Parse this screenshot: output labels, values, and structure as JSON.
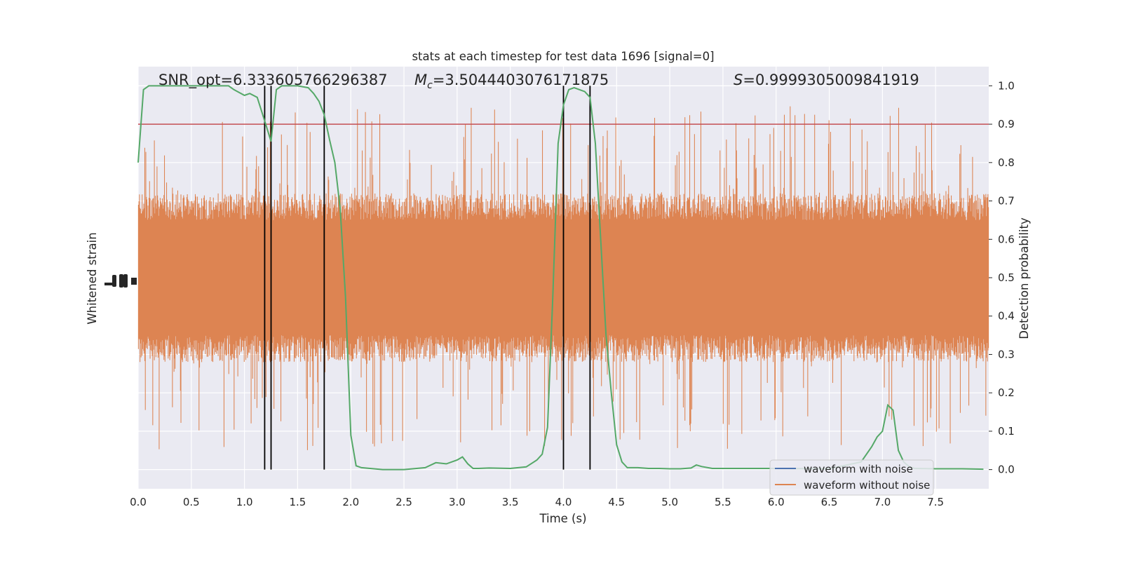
{
  "chart_data": {
    "type": "line",
    "title": "stats at each timestep for test data 1696 [signal=0]",
    "xlabel": "Time (s)",
    "ylabel_left": "Whitened strain",
    "ylabel_right": "Detection probability",
    "xlim": [
      0,
      8
    ],
    "ylim_right": [
      -0.05,
      1.05
    ],
    "x_ticks": [
      "0.0",
      "0.5",
      "1.0",
      "1.5",
      "2.0",
      "2.5",
      "3.0",
      "3.5",
      "4.0",
      "4.5",
      "5.0",
      "5.5",
      "6.0",
      "6.5",
      "7.0",
      "7.5"
    ],
    "y_ticks_right": [
      "0.0",
      "0.1",
      "0.2",
      "0.3",
      "0.4",
      "0.5",
      "0.6",
      "0.7",
      "0.8",
      "0.9",
      "1.0"
    ],
    "grid": true,
    "background": "#eaeaf2",
    "annotations": {
      "snr": "SNR_opt=6.333605766296387",
      "mc_symbol": "M",
      "mc_subscript": "c",
      "mc_value": "=3.5044403076171875",
      "s_symbol": "S",
      "s_value": "=0.9999305009841919"
    },
    "threshold": {
      "value": 0.9,
      "color": "#c44e52"
    },
    "vertical_lines": {
      "x": [
        1.19,
        1.25,
        1.75,
        4.0,
        4.25
      ],
      "color": "#000000"
    },
    "legend": {
      "position": "lower right",
      "entries": [
        "waveform with noise",
        "waveform without noise"
      ]
    },
    "series": [
      {
        "name": "waveform with noise",
        "color": "#4c72b0",
        "role": "strain",
        "values": []
      },
      {
        "name": "waveform without noise",
        "color": "#dd8452",
        "role": "strain",
        "envelope_probability": [
          0.3,
          0.7
        ],
        "extreme_probability": [
          0.0,
          1.0
        ]
      },
      {
        "color": "#55a868",
        "role": "detection_probability",
        "x": [
          0,
          0.05,
          0.1,
          0.2,
          0.3,
          0.5,
          0.7,
          0.85,
          0.9,
          1.0,
          1.05,
          1.12,
          1.2,
          1.25,
          1.3,
          1.35,
          1.4,
          1.5,
          1.6,
          1.65,
          1.7,
          1.75,
          1.8,
          1.85,
          1.9,
          1.95,
          2.0,
          2.05,
          2.1,
          2.3,
          2.5,
          2.7,
          2.8,
          2.9,
          3.0,
          3.05,
          3.1,
          3.15,
          3.2,
          3.3,
          3.5,
          3.65,
          3.75,
          3.8,
          3.85,
          3.9,
          3.95,
          4.0,
          4.05,
          4.1,
          4.15,
          4.2,
          4.25,
          4.3,
          4.35,
          4.4,
          4.45,
          4.5,
          4.55,
          4.6,
          4.7,
          4.8,
          4.9,
          5.0,
          5.1,
          5.2,
          5.25,
          5.3,
          5.4,
          5.5,
          5.8,
          6.0,
          6.5,
          6.8,
          6.9,
          6.95,
          7.0,
          7.05,
          7.1,
          7.15,
          7.2,
          7.25,
          7.3,
          7.5,
          7.75,
          7.95
        ],
        "values": [
          0.8,
          0.99,
          1.0,
          1.0,
          1.0,
          1.0,
          1.0,
          1.0,
          0.99,
          0.975,
          0.98,
          0.97,
          0.9,
          0.855,
          0.99,
          1.0,
          1.0,
          1.0,
          0.995,
          0.98,
          0.96,
          0.925,
          0.86,
          0.8,
          0.68,
          0.45,
          0.09,
          0.01,
          0.005,
          0.0,
          0.0,
          0.005,
          0.018,
          0.015,
          0.025,
          0.033,
          0.015,
          0.003,
          0.003,
          0.004,
          0.003,
          0.007,
          0.025,
          0.04,
          0.11,
          0.45,
          0.85,
          0.95,
          0.99,
          0.995,
          0.99,
          0.985,
          0.97,
          0.85,
          0.6,
          0.35,
          0.2,
          0.065,
          0.02,
          0.005,
          0.005,
          0.003,
          0.003,
          0.002,
          0.002,
          0.004,
          0.012,
          0.008,
          0.003,
          0.003,
          0.003,
          0.003,
          0.002,
          0.02,
          0.06,
          0.085,
          0.1,
          0.168,
          0.155,
          0.05,
          0.02,
          0.008,
          0.003,
          0.002,
          0.002,
          0.001
        ]
      }
    ]
  }
}
